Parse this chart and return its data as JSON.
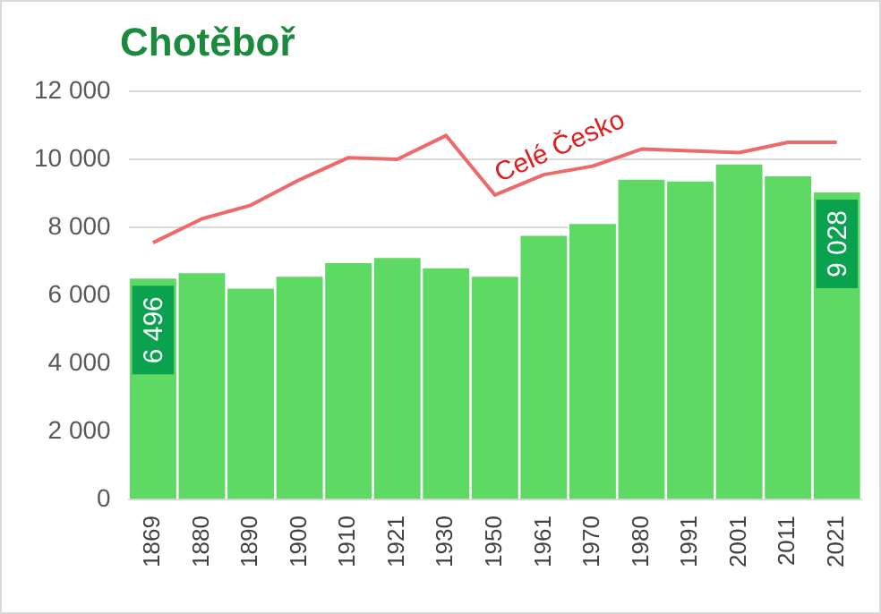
{
  "chart_data": {
    "type": "bar",
    "title": "Chotěboř",
    "categories": [
      "1869",
      "1880",
      "1890",
      "1900",
      "1910",
      "1921",
      "1930",
      "1950",
      "1961",
      "1970",
      "1980",
      "1991",
      "2001",
      "2011",
      "2021"
    ],
    "series": [
      {
        "color": "#5ed963",
        "values": [
          6496,
          6650,
          6200,
          6550,
          6950,
          7100,
          6800,
          6550,
          7750,
          8100,
          9400,
          9350,
          9850,
          9500,
          9028
        ],
        "value_labels": [
          "6 496",
          null,
          null,
          null,
          null,
          null,
          null,
          null,
          null,
          null,
          null,
          null,
          null,
          null,
          "9 028"
        ]
      },
      {
        "type": "line",
        "name": "Celé Česko",
        "color": "#ee6a6a",
        "values": [
          7550,
          8250,
          8650,
          9400,
          10050,
          10000,
          10700,
          8950,
          9550,
          9800,
          10300,
          10250,
          10200,
          10500,
          10500
        ]
      }
    ],
    "ylim": [
      0,
      12000
    ],
    "yticks": [
      {
        "value": 0,
        "label": "0"
      },
      {
        "value": 2000,
        "label": "2 000"
      },
      {
        "value": 4000,
        "label": "4 000"
      },
      {
        "value": 6000,
        "label": "6 000"
      },
      {
        "value": 8000,
        "label": "8 000"
      },
      {
        "value": 10000,
        "label": "10 000"
      },
      {
        "value": 12000,
        "label": "12 000"
      }
    ],
    "grid": "y",
    "legend": false,
    "marker": "none",
    "line_style": "solid"
  }
}
